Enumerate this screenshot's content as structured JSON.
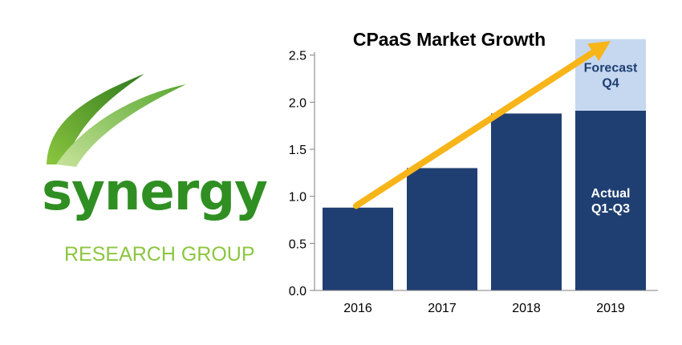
{
  "logo": {
    "word": "synergy",
    "subtitle": "RESEARCH GROUP",
    "colors": {
      "dark_green": "#2f8f22",
      "light_green": "#8cc63f"
    }
  },
  "chart_data": {
    "type": "bar",
    "title": "CPaaS Market Growth",
    "xlabel": "",
    "ylabel": "",
    "categories": [
      "2016",
      "2017",
      "2018",
      "2019"
    ],
    "series": [
      {
        "values": [
          0.88,
          1.3,
          1.88,
          1.91
        ],
        "color": "#1f3f72"
      },
      {
        "values": [
          0,
          0,
          0,
          0.76
        ],
        "color": "#c5d8f0"
      }
    ],
    "ylim": [
      0,
      2.6
    ],
    "yticks": [
      0.0,
      0.5,
      1.0,
      1.5,
      2.0,
      2.5
    ],
    "ytick_labels": [
      "0.0",
      "0.5",
      "1.0",
      "1.5",
      "2.0",
      "2.5"
    ],
    "grid": false,
    "annotations": [
      {
        "lines": [
          "Forecast",
          "Q4"
        ],
        "color": "#1f3f72"
      },
      {
        "lines": [
          "Actual",
          "Q1-Q3"
        ],
        "color": "#ffffff"
      }
    ],
    "trend_arrow": {
      "from": [
        "2016",
        0.9
      ],
      "to": [
        "2019",
        2.65
      ],
      "color": "#f7b519"
    }
  }
}
